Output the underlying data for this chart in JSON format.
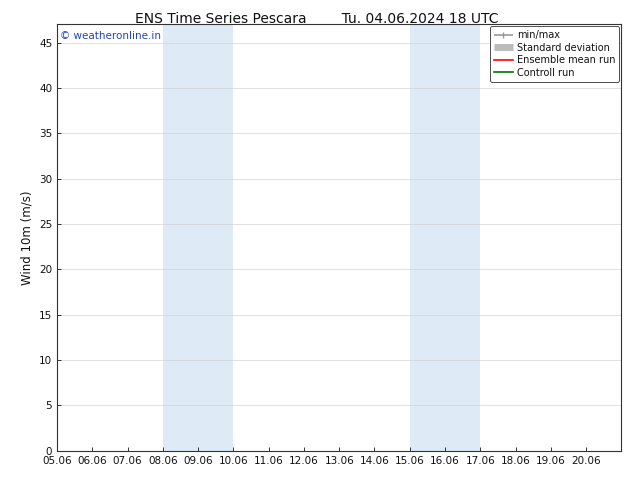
{
  "title_left": "ENS Time Series Pescara",
  "title_right": "Tu. 04.06.2024 18 UTC",
  "ylabel": "Wind 10m (m/s)",
  "xlim_start": 0,
  "xlim_end": 16,
  "ylim": [
    0,
    47
  ],
  "yticks": [
    0,
    5,
    10,
    15,
    20,
    25,
    30,
    35,
    40,
    45
  ],
  "xtick_labels": [
    "05.06",
    "06.06",
    "07.06",
    "08.06",
    "09.06",
    "10.06",
    "11.06",
    "12.06",
    "13.06",
    "14.06",
    "15.06",
    "16.06",
    "17.06",
    "18.06",
    "19.06",
    "20.06"
  ],
  "shaded_bands": [
    {
      "x_start": 3,
      "x_end": 5
    },
    {
      "x_start": 10,
      "x_end": 12
    }
  ],
  "shade_color": "#deeaf5",
  "background_color": "#ffffff",
  "plot_bg_color": "#ffffff",
  "watermark_text": "© weatheronline.in",
  "watermark_color": "#2244bb",
  "legend_items": [
    {
      "label": "min/max",
      "color": "#999999",
      "lw": 1.2
    },
    {
      "label": "Standard deviation",
      "color": "#bbbbbb",
      "lw": 5
    },
    {
      "label": "Ensemble mean run",
      "color": "#ff0000",
      "lw": 1.2
    },
    {
      "label": "Controll run",
      "color": "#007700",
      "lw": 1.2
    }
  ],
  "title_fontsize": 10,
  "tick_fontsize": 7.5,
  "ylabel_fontsize": 8.5,
  "watermark_fontsize": 7.5,
  "legend_fontsize": 7,
  "border_color": "#333333",
  "grid_color": "#cccccc",
  "grid_lw": 0.4
}
